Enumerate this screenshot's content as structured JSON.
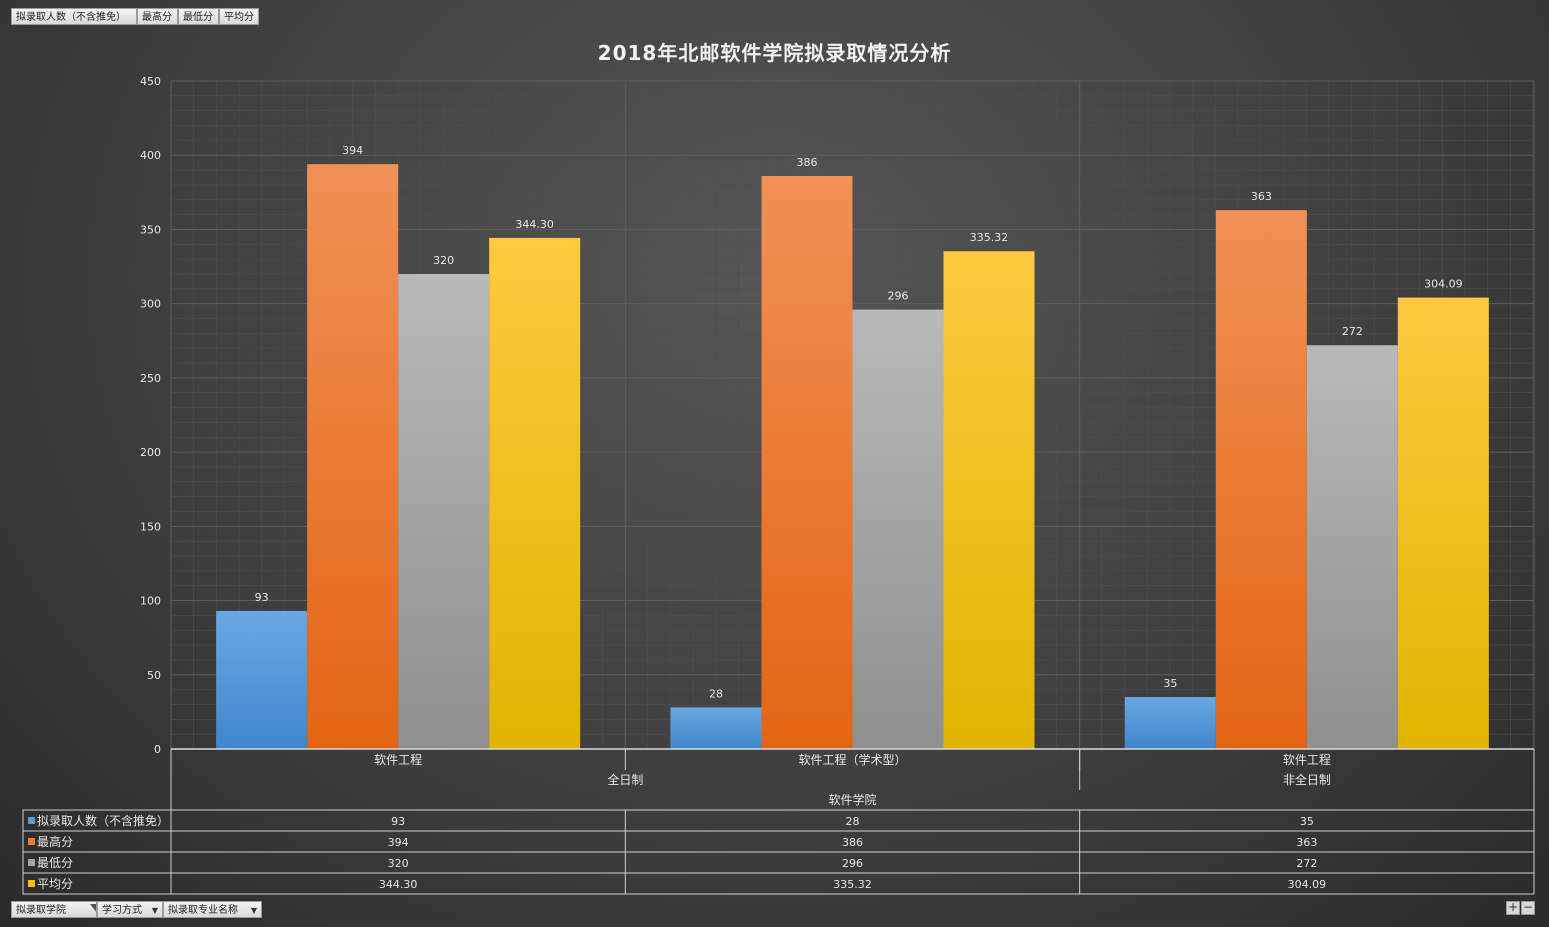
{
  "top_fields": [
    {
      "label": "拟录取人数（不含推免）"
    },
    {
      "label": "最高分"
    },
    {
      "label": "最低分"
    },
    {
      "label": "平均分"
    }
  ],
  "bottom_fields": [
    {
      "label": "拟录取学院"
    },
    {
      "label": "学习方式"
    },
    {
      "label": "拟录取专业名称"
    }
  ],
  "zoom": {
    "plus": "+",
    "minus": "−"
  },
  "colors": {
    "series": [
      "#5b9bd5",
      "#ed7d31",
      "#a5a5a5",
      "#ffc000"
    ],
    "gridline": "#5e5e5e",
    "text": "#e8e8e8"
  },
  "chart_data": {
    "type": "bar",
    "title": "2018年北邮软件学院拟录取情况分析",
    "xlabel": "",
    "ylabel": "",
    "ylim": [
      0,
      450
    ],
    "yticks": [
      0,
      50,
      100,
      150,
      200,
      250,
      300,
      350,
      400,
      450
    ],
    "grid": true,
    "categories": [
      "软件工程",
      "软件工程（学术型）",
      "软件工程"
    ],
    "category_groups": [
      {
        "label": "全日制",
        "span": 2
      },
      {
        "label": "非全日制",
        "span": 1
      }
    ],
    "category_top_group": "软件学院",
    "series": [
      {
        "name": "拟录取人数（不含推免）",
        "values": [
          93,
          28,
          35
        ],
        "labels": [
          "93",
          "28",
          "35"
        ]
      },
      {
        "name": "最高分",
        "values": [
          394,
          386,
          363
        ],
        "labels": [
          "394",
          "386",
          "363"
        ]
      },
      {
        "name": "最低分",
        "values": [
          320,
          296,
          272
        ],
        "labels": [
          "320",
          "296",
          "272"
        ]
      },
      {
        "name": "平均分",
        "values": [
          344.3,
          335.32,
          304.09
        ],
        "labels": [
          "344.30",
          "335.32",
          "304.09"
        ]
      }
    ],
    "legend": "data-table"
  }
}
